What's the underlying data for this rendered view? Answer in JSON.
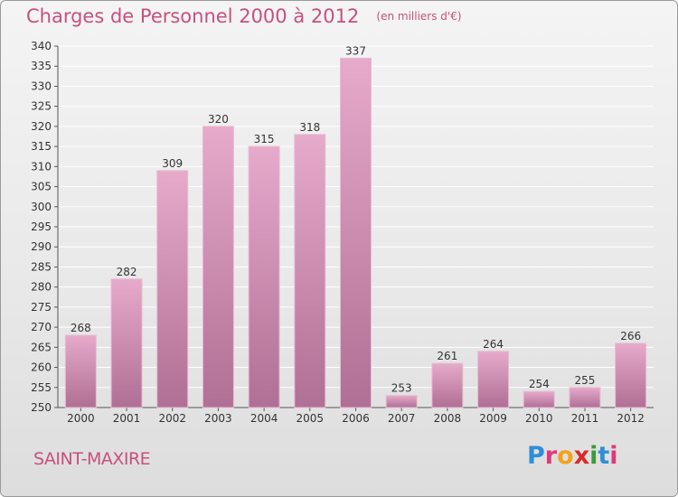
{
  "header": {
    "title": "Charges de Personnel 2000 à 2012",
    "subtitle": "(en milliers d'€)"
  },
  "footer": {
    "place": "SAINT-MAXIRE",
    "logo_letters": [
      {
        "ch": "P",
        "color": "#2f8ed8"
      },
      {
        "ch": "r",
        "color": "#e0397a"
      },
      {
        "ch": "o",
        "color": "#f3a21c"
      },
      {
        "ch": "x",
        "color": "#d72b2b"
      },
      {
        "ch": "i",
        "color": "#3a9b3a"
      },
      {
        "ch": "t",
        "color": "#2f8ed8"
      },
      {
        "ch": "i",
        "color": "#e0397a"
      }
    ]
  },
  "colors": {
    "bar_top": "#e6aacb",
    "bar_bottom": "#b06f94",
    "title": "#c8507e",
    "grid": "#ffffff"
  },
  "chart_data": {
    "type": "bar",
    "title": "Charges de Personnel 2000 à 2012",
    "subtitle": "(en milliers d'€)",
    "categories": [
      "2000",
      "2001",
      "2002",
      "2003",
      "2004",
      "2005",
      "2006",
      "2007",
      "2008",
      "2009",
      "2010",
      "2011",
      "2012"
    ],
    "values": [
      268,
      282,
      309,
      320,
      315,
      318,
      337,
      253,
      261,
      264,
      254,
      255,
      266
    ],
    "xlabel": "",
    "ylabel": "",
    "ylim": [
      250,
      340
    ],
    "yticks": [
      250,
      255,
      260,
      265,
      270,
      275,
      280,
      285,
      290,
      295,
      300,
      305,
      310,
      315,
      320,
      325,
      330,
      335,
      340
    ],
    "grid": true,
    "legend": "none"
  }
}
